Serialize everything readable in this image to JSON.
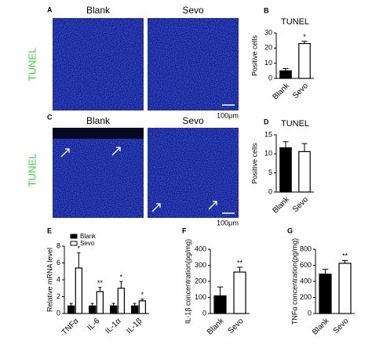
{
  "images": [
    {
      "label": "A",
      "columns": [
        "Blank",
        "Sevo"
      ],
      "stain": "TUNEL",
      "scale_bar": "100μm"
    },
    {
      "label": "C",
      "columns": [
        "Blank",
        "Sevo"
      ],
      "stain": "TUNEL",
      "scale_bar": "100μm"
    }
  ],
  "chart_data": [
    {
      "type": "bar",
      "panel": "B",
      "title": "TUNEL",
      "ylabel": "Positive cells",
      "categories": [
        "Blank",
        "Sevo"
      ],
      "values": [
        5,
        23
      ],
      "errors": [
        1.5,
        1.5
      ],
      "significance": [
        null,
        "*"
      ],
      "colors": [
        "#000000",
        "#ffffff"
      ],
      "ylim": [
        0,
        30
      ],
      "yticks": [
        0,
        10,
        20,
        30
      ]
    },
    {
      "type": "bar",
      "panel": "D",
      "title": "TUNEL",
      "ylabel": "Positive cells",
      "categories": [
        "Blank",
        "Sevo"
      ],
      "values": [
        11.6,
        10.6
      ],
      "errors": [
        1.6,
        2.1
      ],
      "significance": [
        null,
        null
      ],
      "colors": [
        "#000000",
        "#ffffff"
      ],
      "ylim": [
        0,
        15
      ],
      "yticks": [
        0,
        5,
        10,
        15
      ]
    },
    {
      "type": "bar",
      "panel": "E",
      "ylabel": "Relative mRNA level",
      "categories": [
        "TNFα",
        "IL-6",
        "IL-1α",
        "IL-1β"
      ],
      "series": [
        {
          "name": "Blank",
          "color": "#000000",
          "values": [
            0.9,
            0.9,
            0.9,
            0.9
          ],
          "errors": [
            0.3,
            0.3,
            0.3,
            0.3
          ],
          "significance": [
            null,
            null,
            null,
            null
          ]
        },
        {
          "name": "Sevo",
          "color": "#ffffff",
          "values": [
            5.4,
            2.6,
            3.0,
            1.5
          ],
          "errors": [
            1.8,
            0.5,
            0.8,
            0.2
          ],
          "significance": [
            "*",
            "**",
            "*",
            "*"
          ]
        }
      ],
      "ylim": [
        0,
        8
      ],
      "yticks": [
        0,
        2,
        4,
        6,
        8
      ]
    },
    {
      "type": "bar",
      "panel": "F",
      "ylabel": "IL-1β concentration(pg/mg)",
      "categories": [
        "Blank",
        "Sevo"
      ],
      "values": [
        110,
        258
      ],
      "errors": [
        55,
        30
      ],
      "significance": [
        null,
        "**"
      ],
      "colors": [
        "#000000",
        "#ffffff"
      ],
      "ylim": [
        0,
        400
      ],
      "yticks": [
        0,
        100,
        200,
        300,
        400
      ]
    },
    {
      "type": "bar",
      "panel": "G",
      "ylabel": "TNFα concentration(pg/mg)",
      "categories": [
        "Blank",
        "Sevo"
      ],
      "values": [
        490,
        625
      ],
      "errors": [
        60,
        35
      ],
      "significance": [
        null,
        "**"
      ],
      "colors": [
        "#000000",
        "#ffffff"
      ],
      "ylim": [
        0,
        800
      ],
      "yticks": [
        0,
        200,
        400,
        600,
        800
      ]
    }
  ]
}
